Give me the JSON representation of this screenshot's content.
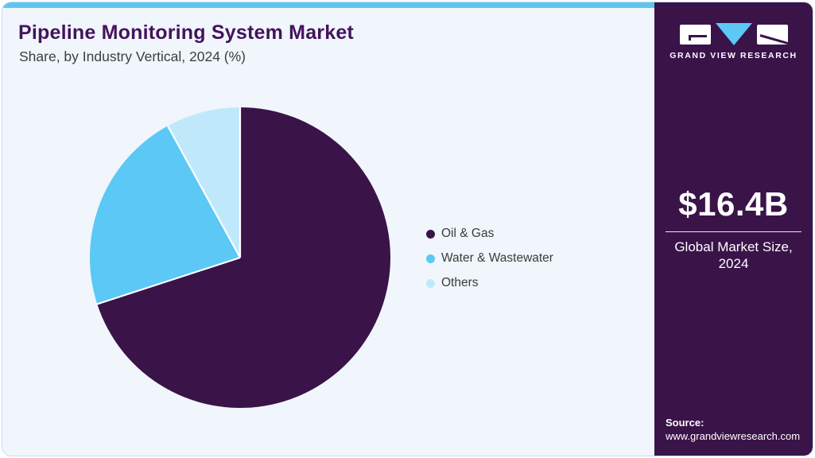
{
  "header": {
    "title": "Pipeline Monitoring System Market",
    "subtitle": "Share, by Industry Vertical, 2024 (%)"
  },
  "chart_data": {
    "type": "pie",
    "title": "Pipeline Monitoring System Market Share, by Industry Vertical, 2024 (%)",
    "categories": [
      "Oil & Gas",
      "Water & Wastewater",
      "Others"
    ],
    "values": [
      70,
      22,
      8
    ],
    "unit": "%",
    "colors": [
      "#3a1349",
      "#5bc8f5",
      "#bfe9fb"
    ],
    "start_angle_deg": 0,
    "direction": "clockwise",
    "legend_position": "right",
    "slice_separator_color": "#ffffff"
  },
  "sidebar": {
    "brand": "GRAND VIEW RESEARCH",
    "market_size": {
      "value": "$16.4B",
      "label_line1": "Global Market Size,",
      "label_line2": "2024"
    },
    "source": {
      "label": "Source:",
      "url": "www.grandviewresearch.com"
    }
  },
  "colors": {
    "topbar": "#5ec5ef",
    "card_background": "#f0f6fb",
    "sidebar_background": "#3a1349",
    "title_text": "#44135c",
    "subtitle_text": "#3e3e3e",
    "legend_text": "#3b3b3b",
    "sidebar_text": "#ffffff",
    "logo_triangle": "#5bc8f5"
  }
}
